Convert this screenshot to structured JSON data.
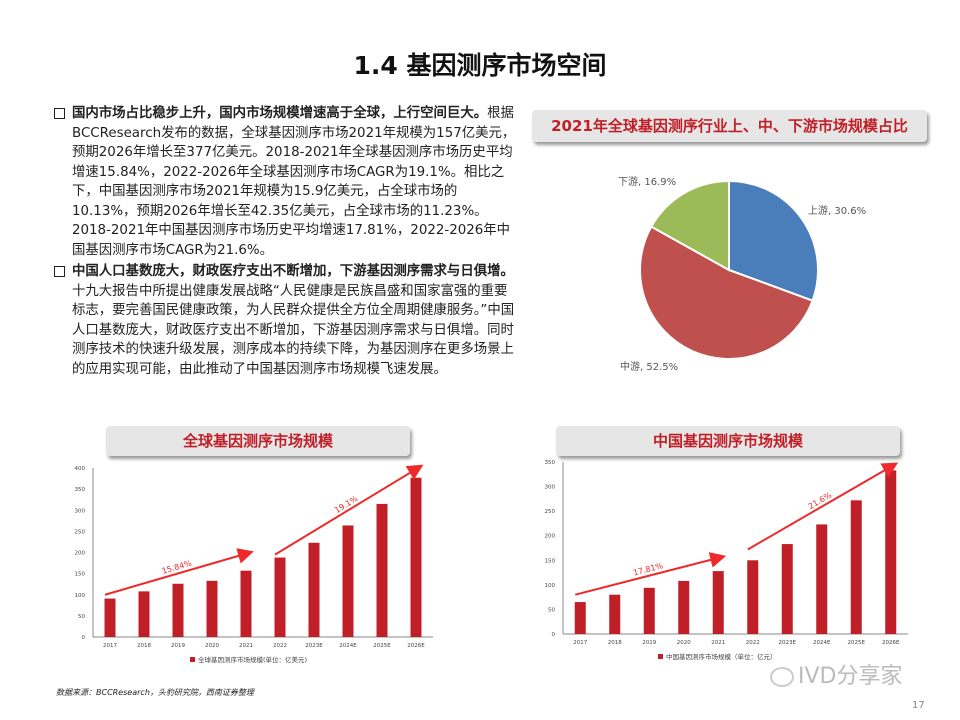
{
  "title": "1.4 基因测序市场空间",
  "paragraphs": [
    {
      "lead": "国内市场占比稳步上升，国内市场规模增速高于全球，上行空间巨大。",
      "body": "根据BCCResearch发布的数据，全球基因测序市场2021年规模为157亿美元，预期2026年增长至377亿美元。2018-2021年全球基因测序市场历史平均增速15.84%，2022-2026年全球基因测序市场CAGR为19.1%。相比之下，中国基因测序市场2021年规模为15.9亿美元，占全球市场的10.13%，预期2026年增长至42.35亿美元，占全球市场的11.23%。2018-2021年中国基因测序市场历史平均增速17.81%，2022-2026年中国基因测序市场CAGR为21.6%。"
    },
    {
      "lead": "中国人口基数庞大，财政医疗支出不断增加，下游基因测序需求与日俱增。",
      "body": "十九大报告中所提出健康发展战略“人民健康是民族昌盛和国家富强的重要标志，要完善国民健康政策，为人民群众提供全方位全周期健康服务。”中国人口基数庞大，财政医疗支出不断增加，下游基因测序需求与日俱增。同时测序技术的快速升级发展，测序成本的持续下降，为基因测序在更多场景上的应用实现可能，由此推动了中国基因测序市场规模飞速发展。"
    }
  ],
  "source": "数据来源：BCCResearch，头豹研究院，西南证券整理",
  "watermark": "IVD分享家",
  "page_number": "17",
  "chart_data": [
    {
      "type": "pie",
      "title": "2021年全球基因测序行业上、中、下游市场规模占比",
      "slices": [
        {
          "name": "上游",
          "value": 30.6,
          "color": "#4a7ebb"
        },
        {
          "name": "中游",
          "value": 52.5,
          "color": "#c0504d"
        },
        {
          "name": "下游",
          "value": 16.9,
          "color": "#9bbb59"
        }
      ]
    },
    {
      "type": "bar",
      "title": "全球基因测序市场规模",
      "legend": "全球基因测序市场规模(单位：亿美元)",
      "categories": [
        "2017",
        "2018",
        "2019",
        "2020",
        "2021",
        "2022",
        "2023E",
        "2024E",
        "2025E",
        "2026E"
      ],
      "values": [
        91,
        108,
        126,
        133,
        157,
        188,
        223,
        264,
        315,
        377
      ],
      "ylim": [
        0,
        400
      ],
      "yticks": [
        0,
        50,
        100,
        150,
        200,
        250,
        300,
        350,
        400
      ],
      "annotations": [
        "15.84%",
        "19.1%"
      ],
      "color": "#c01f27"
    },
    {
      "type": "bar",
      "title": "中国基因测序市场规模",
      "legend": "中国基因测序市场规模（单位：亿元）",
      "categories": [
        "2017",
        "2018",
        "2019",
        "2020",
        "2021",
        "2022",
        "2023E",
        "2024E",
        "2025E",
        "2026E"
      ],
      "values": [
        65,
        80,
        94,
        108,
        128,
        150,
        183,
        223,
        272,
        333
      ],
      "ylim": [
        0,
        350
      ],
      "yticks": [
        0,
        50,
        100,
        150,
        200,
        250,
        300,
        350
      ],
      "annotations": [
        "17.81%",
        "21.6%"
      ],
      "color": "#c01f27"
    }
  ]
}
